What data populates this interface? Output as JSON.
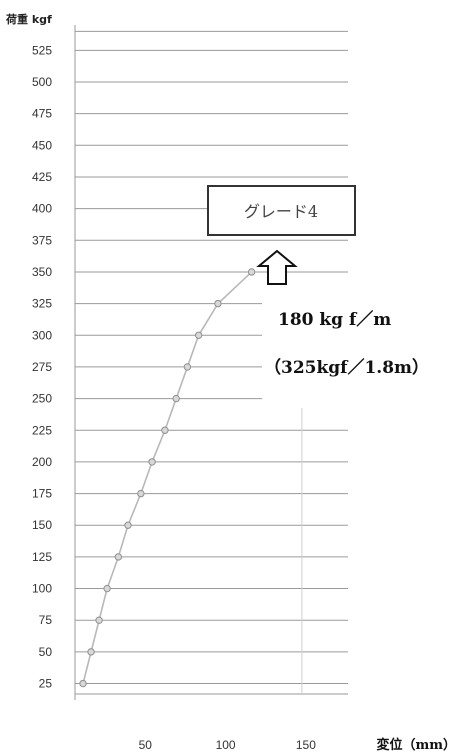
{
  "chart_data": {
    "type": "line",
    "y_header": "荷重 kgf",
    "x_header": "変位（mm）",
    "ylim": [
      12,
      545
    ],
    "xlim": [
      0,
      170
    ],
    "yticks": [
      25,
      50,
      75,
      100,
      125,
      150,
      175,
      200,
      225,
      250,
      275,
      300,
      325,
      350,
      375,
      400,
      425,
      450,
      475,
      500,
      525
    ],
    "xticks": [
      50,
      100,
      150
    ],
    "grid": "horizontal",
    "legend": "none",
    "series": [
      {
        "x": [
          5,
          10,
          15,
          20,
          27,
          33,
          41,
          48,
          56,
          63,
          70,
          77,
          89,
          110
        ],
        "y": [
          25,
          50,
          75,
          100,
          125,
          150,
          175,
          200,
          225,
          250,
          275,
          300,
          325,
          350
        ],
        "color": "#b8b8b8"
      }
    ],
    "annotations": {
      "grade_label": "グレード4",
      "value_label": "180 kg f／m",
      "detail_label": "（325kgf／1.8m）"
    }
  }
}
